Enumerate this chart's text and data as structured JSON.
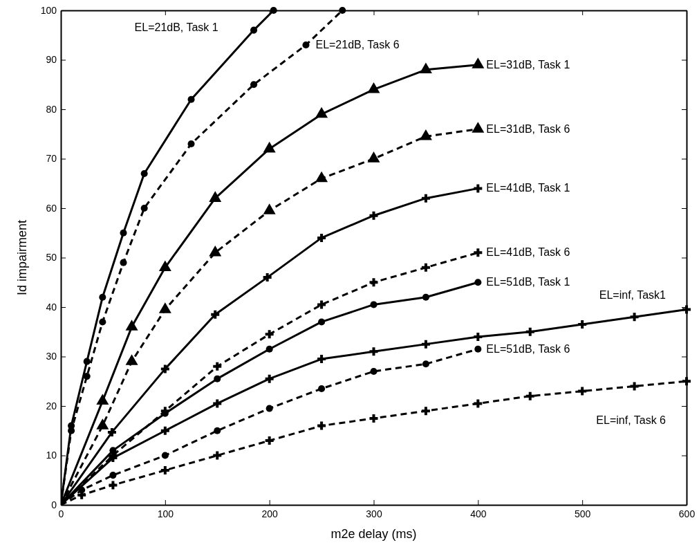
{
  "chart_data": {
    "type": "line",
    "xlabel": "m2e delay (ms)",
    "ylabel": "Id impairment",
    "xlim": [
      0,
      600
    ],
    "ylim": [
      0,
      100
    ],
    "xticks": [
      0,
      100,
      200,
      300,
      400,
      500,
      600
    ],
    "yticks": [
      0,
      10,
      20,
      30,
      40,
      50,
      60,
      70,
      80,
      90,
      100
    ],
    "grid": false,
    "series": [
      {
        "name": "EL=21dB, Task 1",
        "color": "#000000",
        "line_style": "solid",
        "marker": "circle",
        "x": [
          0,
          10,
          25,
          40,
          60,
          80,
          125,
          185,
          204
        ],
        "values": [
          0,
          16,
          29,
          42,
          55,
          67,
          82,
          96,
          100
        ]
      },
      {
        "name": "EL=21dB, Task 6",
        "color": "#000000",
        "line_style": "dashed",
        "marker": "circle",
        "x": [
          0,
          10,
          25,
          40,
          60,
          80,
          125,
          185,
          235,
          270
        ],
        "values": [
          0,
          15,
          26,
          37,
          49,
          60,
          73,
          85,
          93,
          100
        ]
      },
      {
        "name": "EL=31dB, Task 1",
        "color": "#000000",
        "line_style": "solid",
        "marker": "triangle",
        "x": [
          0,
          40,
          68,
          100,
          148,
          200,
          250,
          300,
          350,
          400
        ],
        "values": [
          0,
          21,
          36,
          48,
          62,
          72,
          79,
          84,
          88,
          89
        ]
      },
      {
        "name": "EL=31dB, Task 6",
        "color": "#000000",
        "line_style": "dashed",
        "marker": "triangle",
        "x": [
          0,
          40,
          68,
          100,
          148,
          200,
          250,
          300,
          350,
          400
        ],
        "values": [
          0,
          16,
          29,
          39.5,
          51,
          59.5,
          66,
          70,
          74.5,
          76
        ]
      },
      {
        "name": "EL=41dB, Task 1",
        "color": "#000000",
        "line_style": "solid",
        "marker": "cross",
        "x": [
          0,
          49,
          100,
          148,
          198,
          250,
          300,
          350,
          400
        ],
        "values": [
          0,
          14.7,
          27.5,
          38.5,
          46,
          54,
          58.5,
          62,
          64
        ]
      },
      {
        "name": "EL=41dB, Task 6",
        "color": "#000000",
        "line_style": "dashed",
        "marker": "cross",
        "x": [
          0,
          50,
          100,
          150,
          200,
          250,
          300,
          350,
          400
        ],
        "values": [
          0,
          10,
          19,
          28,
          34.5,
          40.5,
          45,
          48,
          51
        ]
      },
      {
        "name": "EL=51dB, Task 1",
        "color": "#000000",
        "line_style": "solid",
        "marker": "circle",
        "x": [
          0,
          50,
          100,
          150,
          200,
          250,
          300,
          350,
          400
        ],
        "values": [
          0,
          11,
          18.5,
          25.5,
          31.5,
          37,
          40.5,
          42,
          45
        ]
      },
      {
        "name": "EL=inf, Task1",
        "color": "#000000",
        "line_style": "solid",
        "marker": "cross",
        "x": [
          0,
          50,
          100,
          150,
          200,
          250,
          300,
          350,
          400,
          450,
          500,
          550,
          600
        ],
        "values": [
          0,
          9.5,
          15,
          20.5,
          25.5,
          29.5,
          31,
          32.5,
          34,
          35,
          36.5,
          38,
          39.5
        ]
      },
      {
        "name": "EL=51dB, Task 6",
        "color": "#000000",
        "line_style": "dashed",
        "marker": "circle",
        "x": [
          0,
          20,
          50,
          100,
          150,
          200,
          250,
          300,
          350,
          400
        ],
        "values": [
          0,
          3,
          6,
          10,
          15,
          19.5,
          23.5,
          27,
          28.5,
          31.5
        ]
      },
      {
        "name": "EL=inf, Task 6",
        "color": "#000000",
        "line_style": "dashed",
        "marker": "cross",
        "x": [
          0,
          20,
          50,
          100,
          150,
          200,
          250,
          300,
          350,
          400,
          450,
          500,
          550,
          600
        ],
        "values": [
          0,
          2,
          4,
          7,
          10,
          13,
          16,
          17.5,
          19,
          20.5,
          22,
          23,
          24,
          25
        ]
      }
    ]
  }
}
